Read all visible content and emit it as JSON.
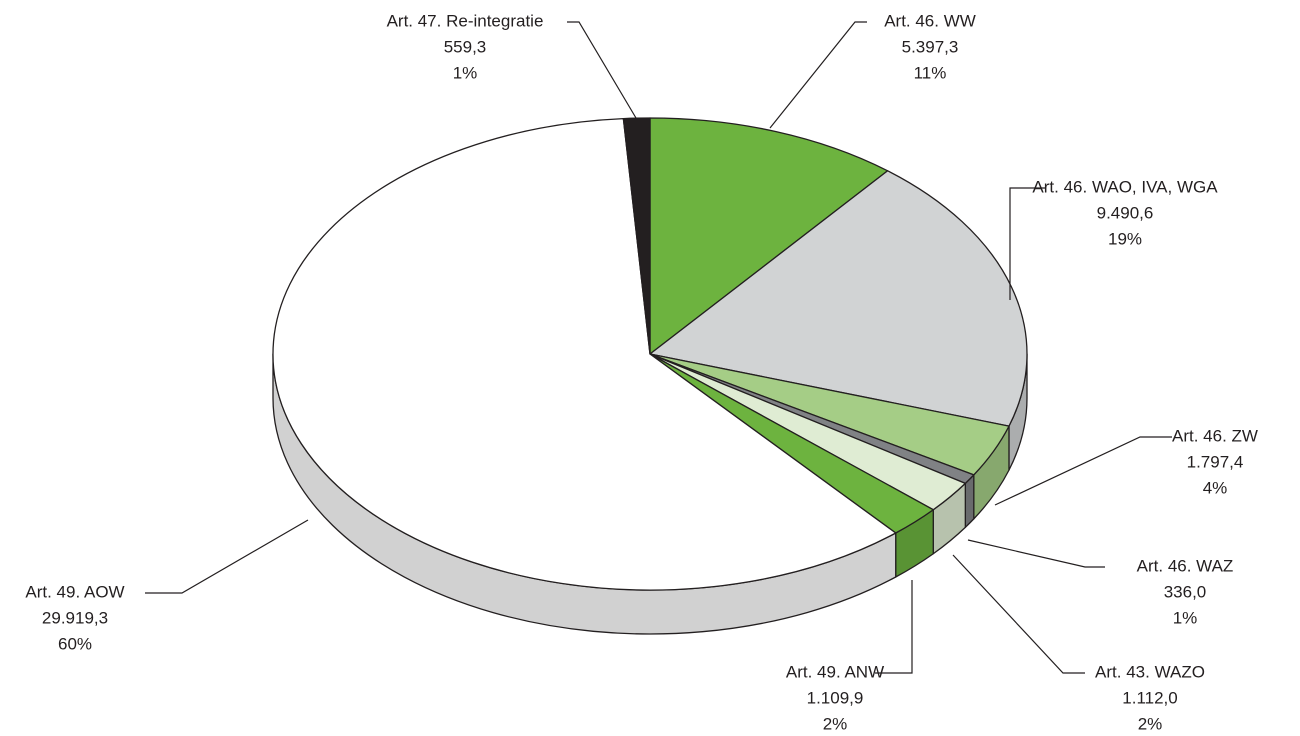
{
  "chart_data": {
    "type": "pie3d",
    "categories": [
      "Art. 46. WW",
      "Art. 46. WAO, IVA, WGA",
      "Art. 46. ZW",
      "Art. 46. WAZ",
      "Art. 43. WAZO",
      "Art. 49. ANW",
      "Art. 49. AOW",
      "Art. 47. Re-integratie"
    ],
    "values": [
      5397.3,
      9490.6,
      1797.4,
      336.0,
      1112.0,
      1109.9,
      29919.3,
      559.3
    ],
    "value_labels": [
      "5.397,3",
      "9.490,6",
      "1.797,4",
      "336,0",
      "1.112,0",
      "1.109,9",
      "29.919,3",
      "559,3"
    ],
    "shares": [
      11,
      19,
      4,
      1,
      2,
      2,
      60,
      1
    ],
    "share_labels": [
      "11%",
      "19%",
      "4%",
      "1%",
      "2%",
      "2%",
      "60%",
      "1%"
    ],
    "colors": [
      "#6db33f",
      "#d1d3d4",
      "#a5cd86",
      "#808285",
      "#dfecd3",
      "#6db33f",
      "#ffffff",
      "#231f20"
    ]
  }
}
